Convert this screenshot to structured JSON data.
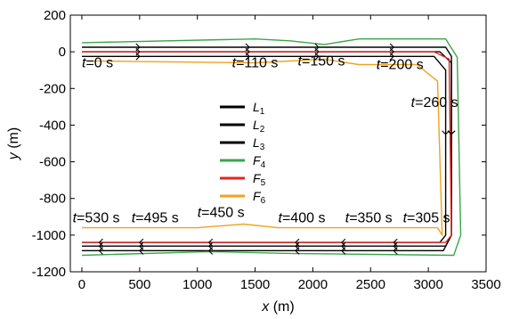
{
  "chart_data": {
    "type": "line",
    "xlabel": "x (m)",
    "ylabel": "y (m)",
    "xlim": [
      -100,
      3500
    ],
    "ylim": [
      -1200,
      200
    ],
    "xticks": [
      0,
      500,
      1000,
      1500,
      2000,
      2500,
      3000,
      3500
    ],
    "yticks": [
      200,
      0,
      -200,
      -400,
      -600,
      -800,
      -1000,
      -1200
    ],
    "grid": false,
    "legend_position": "center-left",
    "series": [
      {
        "name": "L1",
        "sub": "1",
        "color": "#000000",
        "offset": 25,
        "points": [
          [
            0,
            25
          ],
          [
            3150,
            25
          ],
          [
            3200,
            -25
          ],
          [
            3200,
            -1000
          ],
          [
            3150,
            -1060
          ],
          [
            0,
            -1060
          ]
        ]
      },
      {
        "name": "L2",
        "sub": "2",
        "color": "#000000",
        "offset": 0,
        "points": [
          [
            0,
            0
          ],
          [
            3100,
            0
          ],
          [
            3200,
            -60
          ],
          [
            3200,
            -1000
          ],
          [
            3130,
            -1085
          ],
          [
            0,
            -1085
          ]
        ]
      },
      {
        "name": "L3",
        "sub": "3",
        "color": "#000000",
        "offset": -25,
        "points": [
          [
            0,
            -25
          ],
          [
            3050,
            -25
          ],
          [
            3150,
            -100
          ],
          [
            3150,
            -1000
          ],
          [
            3100,
            -1040
          ],
          [
            0,
            -1040
          ]
        ]
      },
      {
        "name": "F4",
        "sub": "4",
        "color": "#3aa64a",
        "offset": 50,
        "points": [
          [
            0,
            50
          ],
          [
            1500,
            70
          ],
          [
            1800,
            60
          ],
          [
            2100,
            40
          ],
          [
            2400,
            70
          ],
          [
            3000,
            70
          ],
          [
            3150,
            70
          ],
          [
            3250,
            -30
          ],
          [
            3280,
            -1000
          ],
          [
            3220,
            -1110
          ],
          [
            1800,
            -1100
          ],
          [
            1100,
            -1090
          ],
          [
            0,
            -1110
          ]
        ]
      },
      {
        "name": "F5",
        "sub": "5",
        "color": "#e52420",
        "offset": 0,
        "points": [
          [
            0,
            0
          ],
          [
            3050,
            0
          ],
          [
            3180,
            -40
          ],
          [
            3200,
            -1000
          ],
          [
            3150,
            -1040
          ],
          [
            0,
            -1040
          ]
        ]
      },
      {
        "name": "F6",
        "sub": "6",
        "color": "#f0a21d",
        "offset": -50,
        "points": [
          [
            50,
            -50
          ],
          [
            1500,
            -60
          ],
          [
            2100,
            -40
          ],
          [
            2400,
            -70
          ],
          [
            2900,
            -70
          ],
          [
            3080,
            -160
          ],
          [
            3120,
            -1000
          ],
          [
            3080,
            -960
          ],
          [
            1700,
            -960
          ],
          [
            1400,
            -940
          ],
          [
            1000,
            -960
          ],
          [
            0,
            -960
          ]
        ]
      }
    ],
    "annotations": [
      {
        "text": "t=0 s",
        "x": 0,
        "y": -85
      },
      {
        "text": "t=110 s",
        "x": 1300,
        "y": -85
      },
      {
        "text": "t=150 s",
        "x": 1870,
        "y": -75
      },
      {
        "text": "t=200 s",
        "x": 2550,
        "y": -95
      },
      {
        "text": "t=260 s",
        "x": 2850,
        "y": -300
      },
      {
        "text": "t=305 s",
        "x": 2780,
        "y": -930
      },
      {
        "text": "t=350 s",
        "x": 2280,
        "y": -930
      },
      {
        "text": "t=400 s",
        "x": 1700,
        "y": -930
      },
      {
        "text": "t=450 s",
        "x": 1000,
        "y": -900
      },
      {
        "text": "t=495 s",
        "x": 430,
        "y": -930
      },
      {
        "text": "t=530 s",
        "x": -80,
        "y": -930
      }
    ]
  }
}
